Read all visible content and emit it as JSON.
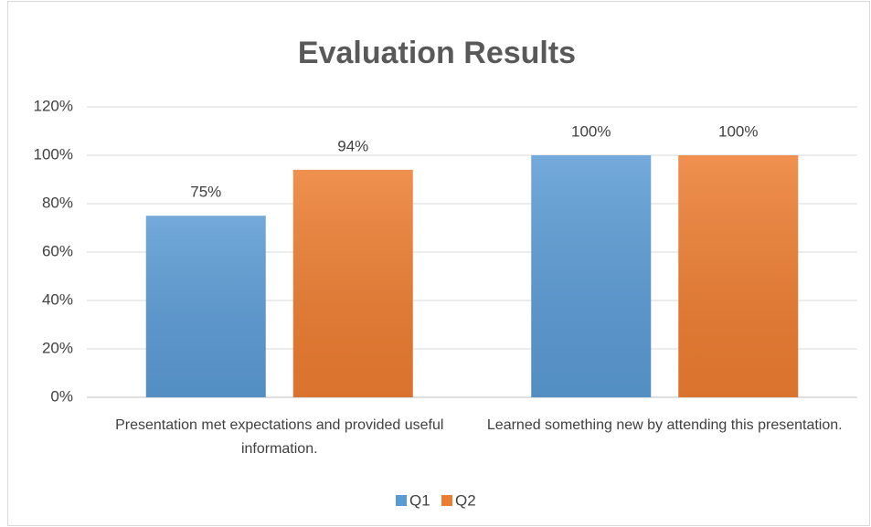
{
  "chart_data": {
    "type": "bar",
    "title": "Evaluation Results",
    "categories": [
      "Presentation met expectations and provided useful information.",
      "Learned something new by attending this presentation."
    ],
    "series": [
      {
        "name": "Q1",
        "color": "#5b9bd5",
        "values": [
          75,
          100
        ],
        "value_labels": [
          "75%",
          "100%"
        ]
      },
      {
        "name": "Q2",
        "color": "#ed7d31",
        "values": [
          94,
          100
        ],
        "value_labels": [
          "94%",
          "100%"
        ]
      }
    ],
    "ylim": [
      0,
      120
    ],
    "yticks": [
      {
        "value": 0,
        "label": "0%"
      },
      {
        "value": 20,
        "label": "20%"
      },
      {
        "value": 40,
        "label": "40%"
      },
      {
        "value": 60,
        "label": "60%"
      },
      {
        "value": 80,
        "label": "80%"
      },
      {
        "value": 100,
        "label": "100%"
      },
      {
        "value": 120,
        "label": "120%"
      }
    ],
    "grid": true,
    "legend": "bottom"
  }
}
